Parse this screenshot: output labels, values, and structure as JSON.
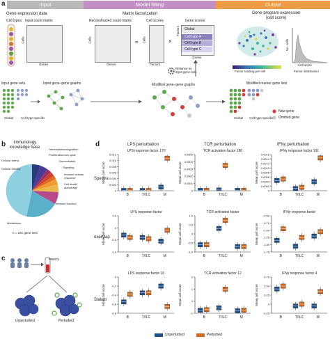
{
  "panel_labels": {
    "a": "a",
    "b": "b",
    "c": "c",
    "d": "d"
  },
  "stages": [
    "Input",
    "Model fitting",
    "Output"
  ],
  "panel_a": {
    "gene_expression_title": "Gene expression data",
    "cell_types": "Cell types",
    "input_count_matrix": "Input count matrix",
    "cells": "Cells",
    "genes": "Genes",
    "matrix_factorization": "Matrix factorization",
    "reconstructed_count_matrix": "Reconstructed count matrix",
    "cell_scores": "Cell scores",
    "gene_scores": "Gene scores",
    "factors": "Factors",
    "equals": "=",
    "times": "×",
    "gene_score_rows": [
      "Global",
      "Cell type A",
      "Cell type B",
      "Cell type C"
    ],
    "reliance": "Reliance on\ninput gene sets",
    "gene_program_title": "Gene program expression\n(cell score)",
    "no_cells": "No. cells",
    "cell_score_axis": "Cell score",
    "factor_loading": "Factor loading per cell",
    "factor_distribution": "Factor distribution",
    "input_gene_sets": "Input gene sets",
    "input_graphs": "Input gene–gene graphs",
    "modified_graphs": "Modified gene–gene graphs",
    "modified_lists": "Modified marker gene lists",
    "global": "Global",
    "cell_type_specific": "Cell-type-specific",
    "new_gene": "New gene",
    "omitted_gene": "Omitted gene"
  },
  "panel_b": {
    "title": "Immunology\nknowledge base",
    "slice_labels": [
      "Cellular stress",
      "Cellular identity",
      "Hemostasis/coagulation",
      "Proliferation/cell cycle",
      "Homeostasis",
      "Signaling",
      "Immune cellular\nresponse",
      "Cell death/\nautophagy",
      "Immune function",
      "Metabolism"
    ],
    "footnote": "n = 231 gene sets"
  },
  "panel_c": {
    "pbmcs": "PBMCs",
    "unperturbed": "Unperturbed",
    "perturbed": "Perturbed"
  },
  "panel_d": {
    "columns": [
      "LPS perturbation",
      "TCR perturbation",
      "IFNγ perturbation"
    ],
    "rows": [
      "Spectra",
      "expiMap",
      "Slalom"
    ],
    "subtitles": [
      [
        "LPS response factor 170",
        "TCR activation factor 180",
        "IFNγ response factor 101"
      ],
      [
        "LPS response factor",
        "TCR activation factor",
        "IFNγ response factor"
      ],
      [
        "LPS response factor 10",
        "TCR activation factor 12",
        "IFNγ response factor 4"
      ]
    ],
    "ylabel": "Mean cell score",
    "categories": [
      "B",
      "T/ILC",
      "M"
    ],
    "legend": {
      "unperturbed": "Unperturbed",
      "perturbed": "Perturbed"
    },
    "colors": {
      "unperturbed": "#1f4e8c",
      "perturbed": "#d2691e"
    },
    "yticks": [
      [
        [
          "0",
          "0.002",
          "0.004",
          "0.006",
          "0.008",
          "0.010",
          "0.012"
        ],
        [
          "0",
          "0.0001",
          "0.0002",
          "0.0003",
          "0.0004",
          "0.0005"
        ],
        [
          "0",
          "0.0002",
          "0.0004",
          "0.0006",
          "0.0008",
          "0.0010",
          "0.0012",
          "0.0014",
          "0.0016"
        ]
      ],
      [
        [
          "-1.0",
          "-0.5",
          "0",
          "0.5"
        ],
        [
          "-1.0",
          "-0.5",
          "0",
          "0.5",
          "1.0"
        ],
        [
          "-1.75",
          "-1.50",
          "-1.25",
          "-1.00",
          "-0.75",
          "-0.50"
        ]
      ],
      [
        [
          "-0.8",
          "-0.6",
          "-0.4",
          "-0.2",
          "0"
        ],
        [
          "-1",
          "0",
          "1",
          "2"
        ],
        [
          "-0.25",
          "0",
          "0.25",
          "0.50",
          "0.75"
        ]
      ]
    ]
  },
  "chart_data": [
    {
      "type": "box",
      "title": "LPS response factor 170",
      "ylabel": "Mean cell score",
      "categories": [
        "B",
        "T/ILC",
        "M"
      ],
      "ylim": [
        0,
        0.012
      ],
      "series": [
        {
          "name": "Unperturbed",
          "values": [
            0.0001,
            0.0001,
            0.0012
          ]
        },
        {
          "name": "Perturbed",
          "values": [
            0.0001,
            0.0001,
            0.0108
          ]
        }
      ]
    },
    {
      "type": "box",
      "title": "TCR activation factor 180",
      "ylabel": "Mean cell score",
      "categories": [
        "B",
        "T/ILC",
        "M"
      ],
      "ylim": [
        0,
        0.0005
      ],
      "series": [
        {
          "name": "Unperturbed",
          "values": [
            5e-06,
            1e-05,
            5e-06
          ]
        },
        {
          "name": "Perturbed",
          "values": [
            5e-06,
            0.00035,
            5e-06
          ]
        }
      ]
    },
    {
      "type": "box",
      "title": "IFNγ response factor 101",
      "ylabel": "Mean cell score",
      "categories": [
        "B",
        "T/ILC",
        "M"
      ],
      "ylim": [
        0,
        0.0016
      ],
      "series": [
        {
          "name": "Unperturbed",
          "values": [
            0.00045,
            0.0001,
            0.0004
          ]
        },
        {
          "name": "Perturbed",
          "values": [
            0.00052,
            0.00015,
            0.00145
          ]
        }
      ]
    },
    {
      "type": "box",
      "title": "LPS response factor",
      "ylabel": "Mean cell score",
      "categories": [
        "B",
        "T/ILC",
        "M"
      ],
      "ylim": [
        -1.0,
        0.5
      ],
      "series": [
        {
          "name": "Unperturbed",
          "values": [
            -0.3,
            -0.4,
            -0.55
          ]
        },
        {
          "name": "Perturbed",
          "values": [
            -0.4,
            -0.45,
            -0.1
          ]
        }
      ]
    },
    {
      "type": "box",
      "title": "TCR activation factor",
      "ylabel": "Mean cell score",
      "categories": [
        "B",
        "T/ILC",
        "M"
      ],
      "ylim": [
        -1.0,
        1.0
      ],
      "series": [
        {
          "name": "Unperturbed",
          "values": [
            -0.6,
            0.3,
            -0.7
          ]
        },
        {
          "name": "Perturbed",
          "values": [
            -0.6,
            0.75,
            -0.7
          ]
        }
      ]
    },
    {
      "type": "box",
      "title": "IFNγ response factor",
      "ylabel": "Mean cell score",
      "categories": [
        "B",
        "T/ILC",
        "M"
      ],
      "ylim": [
        -1.75,
        -0.5
      ],
      "series": [
        {
          "name": "Unperturbed",
          "values": [
            -1.35,
            -1.55,
            -1.2
          ]
        },
        {
          "name": "Perturbed",
          "values": [
            -0.95,
            -1.25,
            -1.05
          ]
        }
      ]
    },
    {
      "type": "box",
      "title": "LPS response factor 10",
      "ylabel": "Mean cell score",
      "categories": [
        "B",
        "T/ILC",
        "M"
      ],
      "ylim": [
        -0.8,
        0
      ],
      "series": [
        {
          "name": "Unperturbed",
          "values": [
            -0.55,
            -0.35,
            -0.2
          ]
        },
        {
          "name": "Perturbed",
          "values": [
            -0.38,
            -0.35,
            -0.65
          ]
        }
      ]
    },
    {
      "type": "box",
      "title": "TCR activation factor 12",
      "ylabel": "Mean cell score",
      "categories": [
        "B",
        "T/ILC",
        "M"
      ],
      "ylim": [
        -1,
        2
      ],
      "series": [
        {
          "name": "Unperturbed",
          "values": [
            -0.75,
            -0.55,
            -0.8
          ]
        },
        {
          "name": "Perturbed",
          "values": [
            -0.7,
            1.0,
            -0.75
          ]
        }
      ]
    },
    {
      "type": "box",
      "title": "IFNγ response factor 4",
      "ylabel": "Mean cell score",
      "categories": [
        "B",
        "T/ILC",
        "M"
      ],
      "ylim": [
        -0.25,
        0.75
      ],
      "series": [
        {
          "name": "Unperturbed",
          "values": [
            0.42,
            -0.05,
            -0.05
          ]
        },
        {
          "name": "Perturbed",
          "values": [
            0.5,
            0.0,
            0.35
          ]
        }
      ]
    }
  ]
}
